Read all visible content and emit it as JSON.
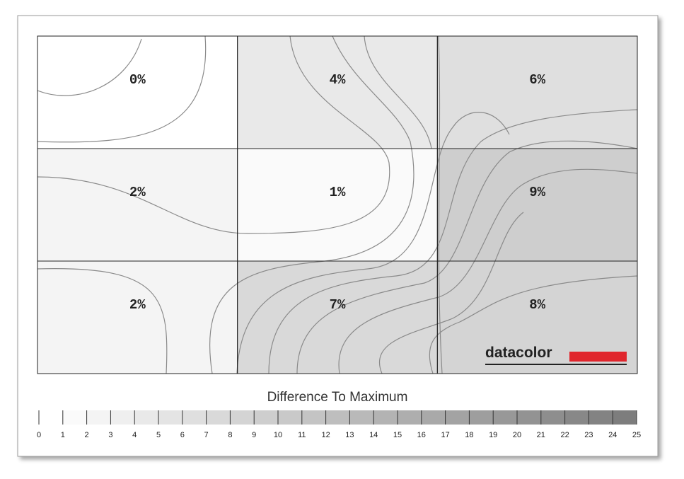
{
  "chart_data": {
    "type": "heatmap",
    "values": [
      [
        0,
        4,
        6
      ],
      [
        2,
        1,
        9
      ],
      [
        2,
        7,
        8
      ]
    ],
    "value_labels": [
      [
        "0%",
        "4%",
        "6%"
      ],
      [
        "2%",
        "1%",
        "9%"
      ],
      [
        "2%",
        "7%",
        "8%"
      ]
    ],
    "logo": "datacolor",
    "colorbar": {
      "title": "Difference To Maximum",
      "lim": [
        0,
        25
      ],
      "ticks": [
        0,
        1,
        2,
        3,
        4,
        5,
        6,
        7,
        8,
        9,
        10,
        11,
        12,
        13,
        14,
        15,
        16,
        17,
        18,
        19,
        20,
        21,
        22,
        23,
        24,
        25
      ]
    }
  }
}
